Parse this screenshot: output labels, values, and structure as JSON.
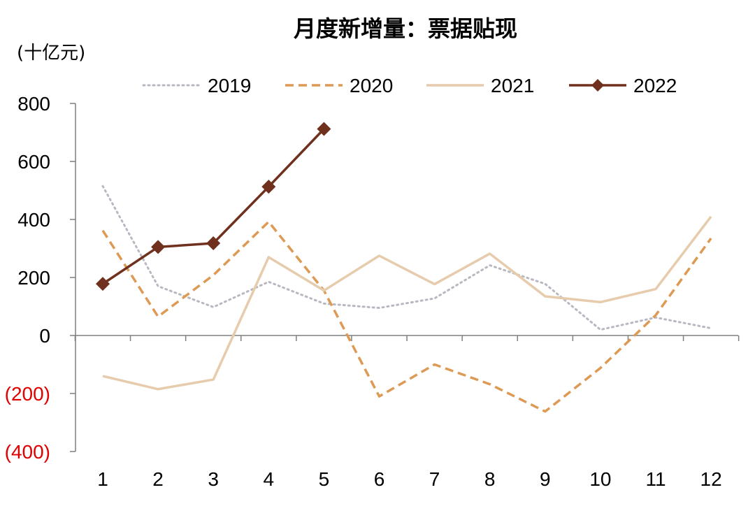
{
  "chart_data": {
    "type": "line",
    "title": "月度新增量：票据贴现",
    "unit_label": "(十亿元)",
    "x": [
      1,
      2,
      3,
      4,
      5,
      6,
      7,
      8,
      9,
      10,
      11,
      12
    ],
    "x_tick_labels": [
      "1",
      "2",
      "3",
      "4",
      "5",
      "6",
      "7",
      "8",
      "9",
      "10",
      "11",
      "12"
    ],
    "ylim": [
      -400,
      800
    ],
    "y_ticks": [
      800,
      600,
      400,
      200,
      0,
      -200,
      -400
    ],
    "y_tick_labels": [
      "800",
      "600",
      "400",
      "200",
      "0",
      "(200)",
      "(400)"
    ],
    "negative_tick_color": "#e00000",
    "legend_position": "top",
    "series": [
      {
        "name": "2019",
        "color": "#b8b8c2",
        "style": "dotted",
        "marker": "none",
        "values": [
          515,
          170,
          98,
          185,
          110,
          95,
          128,
          242,
          178,
          20,
          62,
          25
        ]
      },
      {
        "name": "2020",
        "color": "#dd9a55",
        "style": "dashed",
        "marker": "none",
        "values": [
          362,
          65,
          208,
          392,
          155,
          -210,
          -100,
          -168,
          -262,
          -112,
          70,
          335
        ]
      },
      {
        "name": "2021",
        "color": "#e6ccad",
        "style": "solid",
        "marker": "none",
        "values": [
          -140,
          -185,
          -152,
          270,
          155,
          275,
          177,
          282,
          135,
          115,
          160,
          410
        ]
      },
      {
        "name": "2022",
        "color": "#70301e",
        "style": "solid",
        "marker": "diamond",
        "values": [
          178,
          305,
          318,
          513,
          712,
          null,
          null,
          null,
          null,
          null,
          null,
          null
        ]
      }
    ]
  }
}
